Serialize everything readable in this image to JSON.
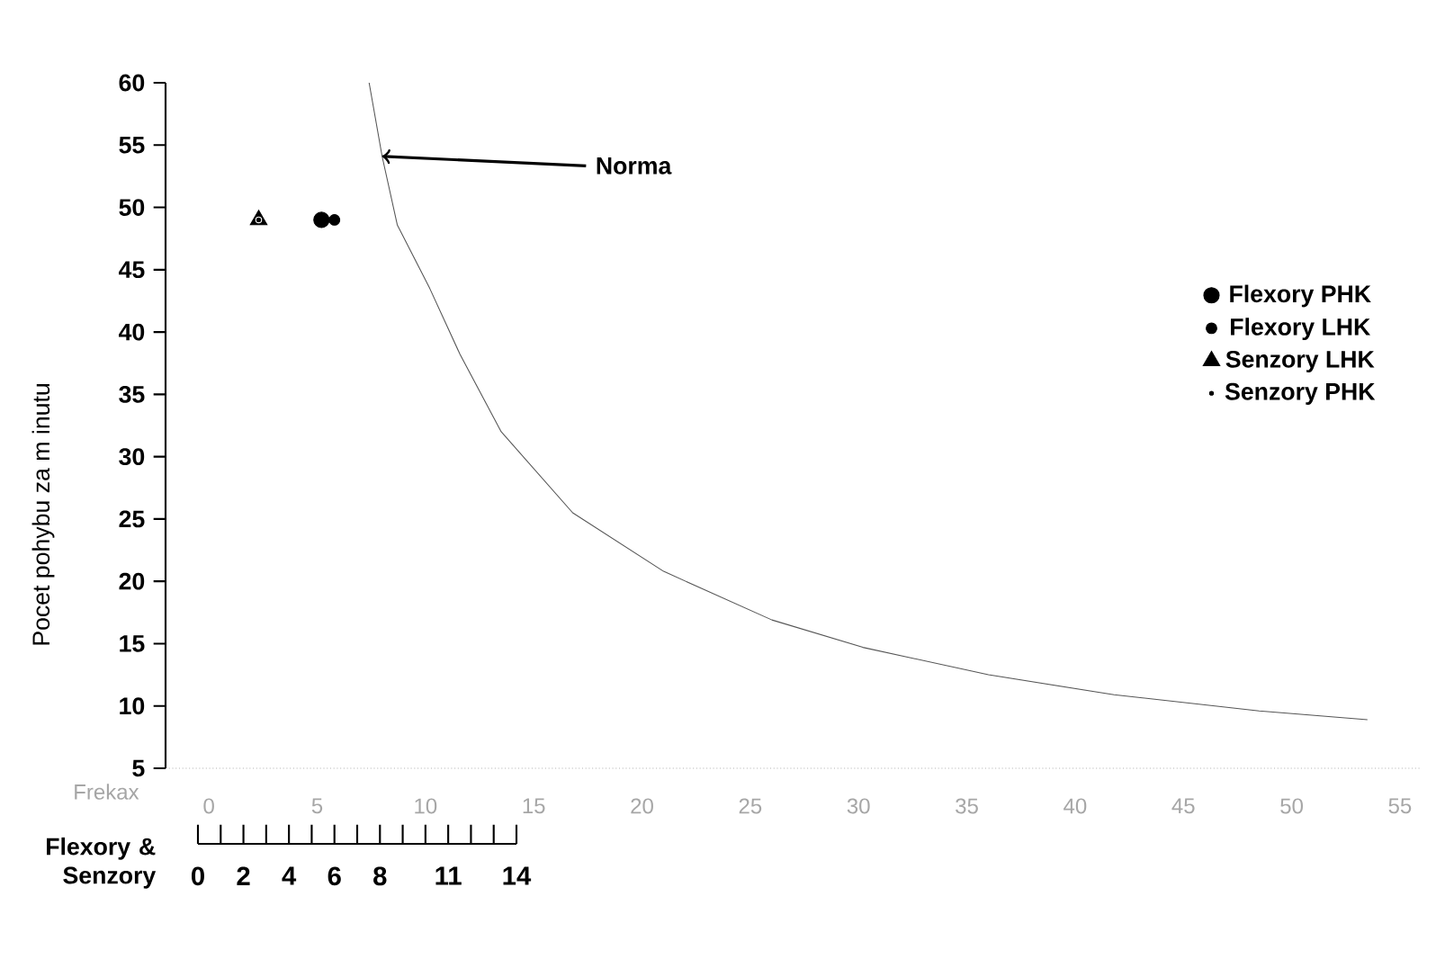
{
  "chart_data": {
    "type": "scatter",
    "ylabel": "Pocet pohybu za m inutu",
    "xlabel": "Frekax",
    "x2label": "Flexory & Senzory",
    "xlim": [
      -2,
      56
    ],
    "ylim": [
      5,
      60
    ],
    "xticks": [
      0,
      5,
      10,
      15,
      20,
      25,
      30,
      35,
      40,
      45,
      50,
      55
    ],
    "yticks": [
      5,
      10,
      15,
      20,
      25,
      30,
      35,
      40,
      45,
      50,
      55,
      60
    ],
    "x2lim": [
      0,
      14
    ],
    "x2ticks": [
      0,
      {
        "value": 1,
        "label": null
      },
      2,
      {
        "value": 3,
        "label": null
      },
      4,
      {
        "value": 5,
        "label": null
      },
      6,
      {
        "value": 7,
        "label": null
      },
      8,
      {
        "value": 9,
        "label": null
      },
      {
        "value": 10,
        "label": null
      },
      11,
      {
        "value": 12,
        "label": null
      },
      {
        "value": 13,
        "label": null
      },
      14
    ],
    "legend": "right",
    "grid": false,
    "annotations": [
      {
        "text": "Norma",
        "x": 8,
        "y": 54.1
      }
    ],
    "series": [
      {
        "name": "Flexory PHK",
        "color": "#000000",
        "marker": "circle",
        "x": [
          5.2
        ],
        "values": [
          49
        ]
      },
      {
        "name": "Flexory LHK",
        "color": "#000000",
        "marker": "circle",
        "x": [
          5.8
        ],
        "values": [
          49
        ]
      },
      {
        "name": "Senzory LHK",
        "color": "#000000",
        "marker": "triangle",
        "x": [
          2.3
        ],
        "values": [
          49
        ]
      },
      {
        "name": "Senzory PHK",
        "color": "#000000",
        "marker": "circle",
        "x": [
          2.3
        ],
        "values": [
          49
        ]
      },
      {
        "type": "line",
        "color": "#555555",
        "marker": "none",
        "x": [
          7.4,
          8,
          8.7,
          10.2,
          11.6,
          13.5,
          16.8,
          21,
          26,
          30.2,
          36,
          41.8,
          48.5,
          53.5
        ],
        "values": [
          60,
          54.1,
          48.6,
          43.5,
          38.2,
          32,
          25.5,
          20.8,
          16.9,
          14.7,
          12.5,
          10.9,
          9.6,
          8.9
        ]
      }
    ]
  }
}
